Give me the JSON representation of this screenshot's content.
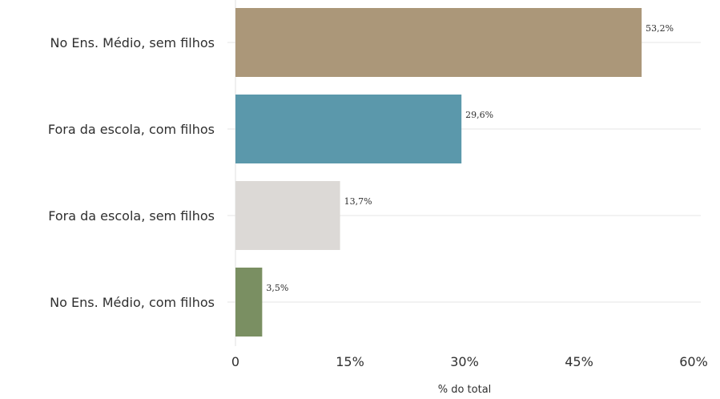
{
  "chart_data": {
    "type": "bar",
    "orientation": "horizontal",
    "categories": [
      "No Ens. Médio, sem filhos",
      "Fora da escola, com filhos",
      "Fora da escola, sem filhos",
      "No Ens. Médio, com filhos"
    ],
    "values": [
      53.2,
      29.6,
      13.7,
      3.5
    ],
    "value_labels": [
      "53,2%",
      "29,6%",
      "13,7%",
      "3,5%"
    ],
    "colors": [
      "#ab9779",
      "#5b98ab",
      "#dcd9d6",
      "#7a8f62"
    ],
    "xlabel": "% do total",
    "xlim": [
      0,
      60
    ],
    "xticks": [
      0,
      15,
      30,
      45,
      60
    ],
    "xtick_labels": [
      "0",
      "15%",
      "30%",
      "45%",
      "60%"
    ],
    "grid": "horizontal lines at each category",
    "legend": "none"
  }
}
